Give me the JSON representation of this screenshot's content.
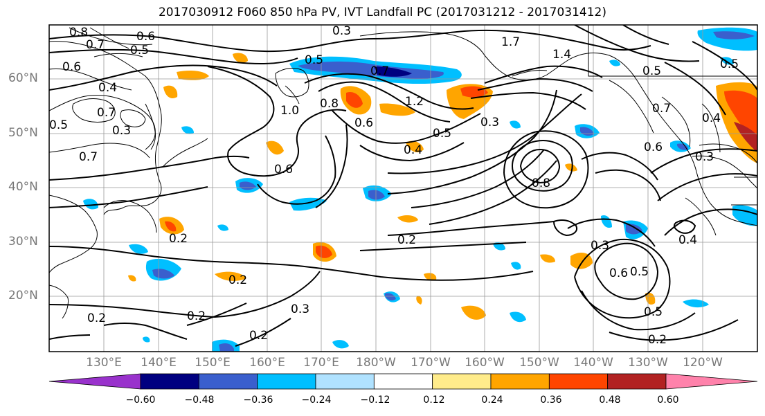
{
  "title": "2017030912 F060 850 hPa PV, IVT Landfall PC (2017031212 - 2017031412)",
  "lat_labels": [
    "60°N",
    "50°N",
    "40°N",
    "30°N",
    "20°N"
  ],
  "lon_labels": [
    "130°E",
    "140°E",
    "150°E",
    "160°E",
    "170°E",
    "180°W",
    "170°W",
    "160°W",
    "150°W",
    "140°W",
    "130°W",
    "120°W"
  ],
  "colorbar": {
    "ticks": [
      "−0.60",
      "−0.48",
      "−0.36",
      "−0.24",
      "−0.12",
      "0.12",
      "0.24",
      "0.36",
      "0.48",
      "0.60"
    ],
    "colors": [
      "#9932CC",
      "#000080",
      "#3A5FCD",
      "#00BFFF",
      "#B0E2FF",
      "#FFFFFF",
      "#FFEC8B",
      "#FFA500",
      "#FF4500",
      "#B22222",
      "#FF82AB"
    ]
  },
  "contour_labels": [
    "0.8",
    "0.7",
    "0.6",
    "0.5",
    "0.3",
    "0.5",
    "0.7",
    "1.2",
    "1.0",
    "0.8",
    "0.6",
    "0.4",
    "0.5",
    "0.3",
    "1.7",
    "1.4",
    "0.5",
    "0.7",
    "0.4",
    "0.5",
    "0.3",
    "0.8",
    "0.6",
    "0.2",
    "0.3",
    "0.6",
    "0.5",
    "0.4",
    "0.2",
    "0.2",
    "0.2",
    "0.2",
    "0.2",
    "0.5",
    "0.2",
    "0.3",
    "0.7",
    "0.5",
    "0.4",
    "0.6",
    "0.7",
    "0.6",
    "0.3"
  ]
}
